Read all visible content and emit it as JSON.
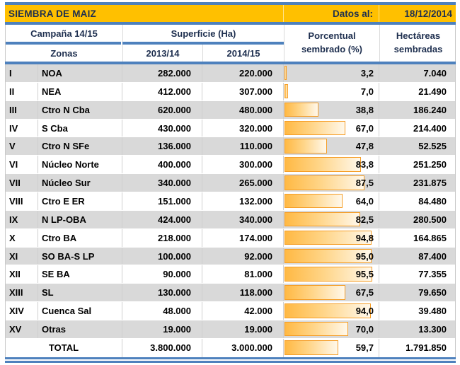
{
  "title_bar": {
    "title": "SIEMBRA DE MAIZ",
    "datos_label": "Datos al:",
    "date": "18/12/2014"
  },
  "header": {
    "campana": "Campaña 14/15",
    "zonas": "Zonas",
    "superficie": "Superficie (Ha)",
    "col_2013": "2013/14",
    "col_2014": "2014/15",
    "porcentual_line1": "Porcentual",
    "porcentual_line2": "sembrado (%)",
    "hectareas_line1": "Hectáreas",
    "hectareas_line2": "sembradas"
  },
  "rows": [
    {
      "num": "I",
      "zona": "NOA",
      "s2013": "282.000",
      "s2014": "220.000",
      "pct": 3.2,
      "pct_label": "3,2",
      "ha": "7.040"
    },
    {
      "num": "II",
      "zona": "NEA",
      "s2013": "412.000",
      "s2014": "307.000",
      "pct": 7.0,
      "pct_label": "7,0",
      "ha": "21.490"
    },
    {
      "num": "III",
      "zona": "Ctro N Cba",
      "s2013": "620.000",
      "s2014": "480.000",
      "pct": 38.8,
      "pct_label": "38,8",
      "ha": "186.240"
    },
    {
      "num": "IV",
      "zona": "S Cba",
      "s2013": "430.000",
      "s2014": "320.000",
      "pct": 67.0,
      "pct_label": "67,0",
      "ha": "214.400"
    },
    {
      "num": "V",
      "zona": "Ctro N SFe",
      "s2013": "136.000",
      "s2014": "110.000",
      "pct": 47.8,
      "pct_label": "47,8",
      "ha": "52.525"
    },
    {
      "num": "VI",
      "zona": "Núcleo Norte",
      "s2013": "400.000",
      "s2014": "300.000",
      "pct": 83.8,
      "pct_label": "83,8",
      "ha": "251.250"
    },
    {
      "num": "VII",
      "zona": "Núcleo Sur",
      "s2013": "340.000",
      "s2014": "265.000",
      "pct": 87.5,
      "pct_label": "87,5",
      "ha": "231.875"
    },
    {
      "num": "VIII",
      "zona": "Ctro E ER",
      "s2013": "151.000",
      "s2014": "132.000",
      "pct": 64.0,
      "pct_label": "64,0",
      "ha": "84.480"
    },
    {
      "num": "IX",
      "zona": "N LP-OBA",
      "s2013": "424.000",
      "s2014": "340.000",
      "pct": 82.5,
      "pct_label": "82,5",
      "ha": "280.500"
    },
    {
      "num": "X",
      "zona": "Ctro BA",
      "s2013": "218.000",
      "s2014": "174.000",
      "pct": 94.8,
      "pct_label": "94,8",
      "ha": "164.865"
    },
    {
      "num": "XI",
      "zona": "SO BA-S LP",
      "s2013": "100.000",
      "s2014": "92.000",
      "pct": 95.0,
      "pct_label": "95,0",
      "ha": "87.400"
    },
    {
      "num": "XII",
      "zona": "SE BA",
      "s2013": "90.000",
      "s2014": "81.000",
      "pct": 95.5,
      "pct_label": "95,5",
      "ha": "77.355"
    },
    {
      "num": "XIII",
      "zona": "SL",
      "s2013": "130.000",
      "s2014": "118.000",
      "pct": 67.5,
      "pct_label": "67,5",
      "ha": "79.650"
    },
    {
      "num": "XIV",
      "zona": "Cuenca Sal",
      "s2013": "48.000",
      "s2014": "42.000",
      "pct": 94.0,
      "pct_label": "94,0",
      "ha": "39.480"
    },
    {
      "num": "XV",
      "zona": "Otras",
      "s2013": "19.000",
      "s2014": "19.000",
      "pct": 70.0,
      "pct_label": "70,0",
      "ha": "13.300"
    }
  ],
  "total": {
    "label": "TOTAL",
    "s2013": "3.800.000",
    "s2014": "3.000.000",
    "pct": 59.7,
    "pct_label": "59,7",
    "ha": "1.791.850"
  },
  "colors": {
    "accent_blue": "#4E81BD",
    "title_orange": "#FFC000",
    "band_gray": "#D9D9D9",
    "header_text_navy": "#1E2F4F",
    "bar_border_orange": "#F59D25",
    "bar_fill_orange": "#FFB944"
  },
  "chart_data": {
    "type": "table",
    "title": "SIEMBRA DE MAIZ",
    "subtitle": "Datos al: 18/12/2014",
    "columns": [
      "Zona (número)",
      "Zona (nombre)",
      "Superficie (Ha) 2013/14",
      "Superficie (Ha) 2014/15",
      "Porcentual sembrado (%)",
      "Hectáreas sembradas"
    ],
    "bar_column": "Porcentual sembrado (%)",
    "bar_range": [
      0,
      100
    ],
    "rows": [
      [
        "I",
        "NOA",
        282000,
        220000,
        3.2,
        7040
      ],
      [
        "II",
        "NEA",
        412000,
        307000,
        7.0,
        21490
      ],
      [
        "III",
        "Ctro N Cba",
        620000,
        480000,
        38.8,
        186240
      ],
      [
        "IV",
        "S Cba",
        430000,
        320000,
        67.0,
        214400
      ],
      [
        "V",
        "Ctro N SFe",
        136000,
        110000,
        47.8,
        52525
      ],
      [
        "VI",
        "Núcleo Norte",
        400000,
        300000,
        83.8,
        251250
      ],
      [
        "VII",
        "Núcleo Sur",
        340000,
        265000,
        87.5,
        231875
      ],
      [
        "VIII",
        "Ctro E ER",
        151000,
        132000,
        64.0,
        84480
      ],
      [
        "IX",
        "N LP-OBA",
        424000,
        340000,
        82.5,
        280500
      ],
      [
        "X",
        "Ctro BA",
        218000,
        174000,
        94.8,
        164865
      ],
      [
        "XI",
        "SO BA-S LP",
        100000,
        92000,
        95.0,
        87400
      ],
      [
        "XII",
        "SE BA",
        90000,
        81000,
        95.5,
        77355
      ],
      [
        "XIII",
        "SL",
        130000,
        118000,
        67.5,
        79650
      ],
      [
        "XIV",
        "Cuenca Sal",
        48000,
        42000,
        94.0,
        39480
      ],
      [
        "XV",
        "Otras",
        19000,
        19000,
        70.0,
        13300
      ]
    ],
    "total_row": [
      "",
      "TOTAL",
      3800000,
      3000000,
      59.7,
      1791850
    ]
  }
}
